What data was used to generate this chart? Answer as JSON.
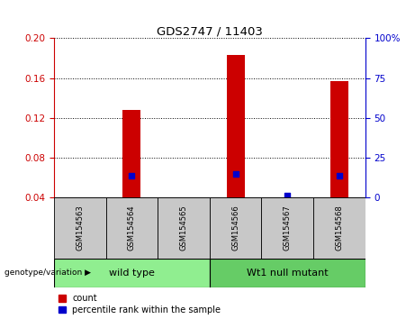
{
  "title": "GDS2747 / 11403",
  "samples": [
    "GSM154563",
    "GSM154564",
    "GSM154565",
    "GSM154566",
    "GSM154567",
    "GSM154568"
  ],
  "groups": [
    {
      "name": "wild type",
      "color": "#90EE90",
      "samples": [
        0,
        1,
        2
      ]
    },
    {
      "name": "Wt1 null mutant",
      "color": "#66CC66",
      "samples": [
        3,
        4,
        5
      ]
    }
  ],
  "red_counts": [
    0.0,
    0.128,
    0.0,
    0.183,
    0.0,
    0.157
  ],
  "blue_percentile_left": [
    0.0,
    0.062,
    0.0,
    0.064,
    0.042,
    0.062
  ],
  "ylim_left": [
    0.04,
    0.2
  ],
  "ylim_right": [
    0,
    100
  ],
  "yticks_left": [
    0.04,
    0.08,
    0.12,
    0.16,
    0.2
  ],
  "yticks_right": [
    0,
    25,
    50,
    75,
    100
  ],
  "bar_width": 0.35,
  "red_color": "#CC0000",
  "blue_color": "#0000CC",
  "left_tick_color": "#CC0000",
  "right_tick_color": "#0000CC",
  "bg_plot": "#FFFFFF",
  "label_count": "count",
  "label_percentile": "percentile rank within the sample",
  "genotype_label": "genotype/variation",
  "tick_area_color": "#C8C8C8",
  "group0_color": "#90EE90",
  "group1_color": "#66CC66"
}
